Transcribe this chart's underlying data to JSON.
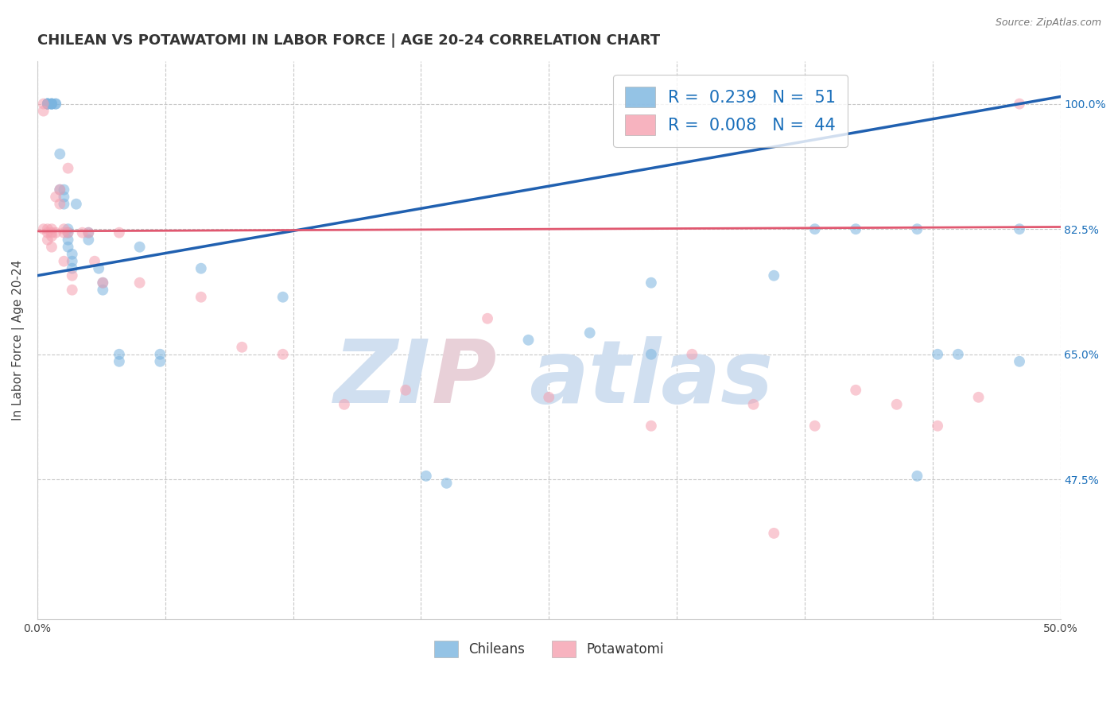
{
  "title": "CHILEAN VS POTAWATOMI IN LABOR FORCE | AGE 20-24 CORRELATION CHART",
  "source": "Source: ZipAtlas.com",
  "ylabel": "In Labor Force | Age 20-24",
  "xlim": [
    0.0,
    0.5
  ],
  "ylim": [
    0.28,
    1.06
  ],
  "ytick_labels": [
    "100.0%",
    "82.5%",
    "65.0%",
    "47.5%"
  ],
  "ytick_positions": [
    1.0,
    0.825,
    0.65,
    0.475
  ],
  "background_color": "#ffffff",
  "grid_color": "#c8c8c8",
  "blue_color": "#7ab4df",
  "pink_color": "#f5a0b0",
  "blue_line_color": "#2060b0",
  "pink_line_color": "#e05870",
  "legend_R_blue": "0.239",
  "legend_N_blue": "51",
  "legend_R_pink": "0.008",
  "legend_N_pink": "44",
  "blue_scatter_x": [
    0.005,
    0.005,
    0.005,
    0.005,
    0.005,
    0.007,
    0.007,
    0.007,
    0.007,
    0.009,
    0.009,
    0.011,
    0.011,
    0.013,
    0.013,
    0.013,
    0.015,
    0.015,
    0.015,
    0.015,
    0.017,
    0.017,
    0.017,
    0.019,
    0.025,
    0.025,
    0.03,
    0.032,
    0.032,
    0.04,
    0.04,
    0.05,
    0.06,
    0.06,
    0.08,
    0.12,
    0.19,
    0.2,
    0.24,
    0.27,
    0.3,
    0.36,
    0.4,
    0.43,
    0.44,
    0.48,
    0.3,
    0.38,
    0.43,
    0.45,
    0.48
  ],
  "blue_scatter_y": [
    1.0,
    1.0,
    1.0,
    1.0,
    1.0,
    1.0,
    1.0,
    1.0,
    1.0,
    1.0,
    1.0,
    0.93,
    0.88,
    0.88,
    0.87,
    0.86,
    0.825,
    0.82,
    0.81,
    0.8,
    0.79,
    0.78,
    0.77,
    0.86,
    0.82,
    0.81,
    0.77,
    0.75,
    0.74,
    0.65,
    0.64,
    0.8,
    0.65,
    0.64,
    0.77,
    0.73,
    0.48,
    0.47,
    0.67,
    0.68,
    0.75,
    0.76,
    0.825,
    0.825,
    0.65,
    0.64,
    0.65,
    0.825,
    0.48,
    0.65,
    0.825
  ],
  "pink_scatter_x": [
    0.003,
    0.003,
    0.003,
    0.005,
    0.005,
    0.005,
    0.007,
    0.007,
    0.007,
    0.007,
    0.009,
    0.009,
    0.011,
    0.011,
    0.013,
    0.013,
    0.013,
    0.015,
    0.015,
    0.017,
    0.017,
    0.022,
    0.025,
    0.028,
    0.032,
    0.04,
    0.05,
    0.08,
    0.1,
    0.12,
    0.15,
    0.18,
    0.22,
    0.25,
    0.3,
    0.32,
    0.35,
    0.36,
    0.38,
    0.4,
    0.42,
    0.44,
    0.46,
    0.48
  ],
  "pink_scatter_y": [
    1.0,
    0.99,
    0.825,
    0.825,
    0.82,
    0.81,
    0.825,
    0.82,
    0.815,
    0.8,
    0.87,
    0.82,
    0.88,
    0.86,
    0.825,
    0.82,
    0.78,
    0.91,
    0.82,
    0.76,
    0.74,
    0.82,
    0.82,
    0.78,
    0.75,
    0.82,
    0.75,
    0.73,
    0.66,
    0.65,
    0.58,
    0.6,
    0.7,
    0.59,
    0.55,
    0.65,
    0.58,
    0.4,
    0.55,
    0.6,
    0.58,
    0.55,
    0.59,
    1.0
  ],
  "blue_trend_x0": 0.0,
  "blue_trend_y0": 0.76,
  "blue_trend_x1": 0.5,
  "blue_trend_y1": 1.01,
  "pink_trend_x0": 0.0,
  "pink_trend_y0": 0.822,
  "pink_trend_x1": 0.5,
  "pink_trend_y1": 0.828,
  "watermark_zi": "ZI",
  "watermark_p": "P",
  "watermark_atlas": "atlas",
  "watermark_color_blue": "#d0dff0",
  "watermark_color_pink": "#e8d0d8",
  "marker_size": 100,
  "marker_alpha": 0.55,
  "title_fontsize": 13,
  "axis_label_fontsize": 11,
  "tick_fontsize": 10,
  "legend_fontsize": 15
}
